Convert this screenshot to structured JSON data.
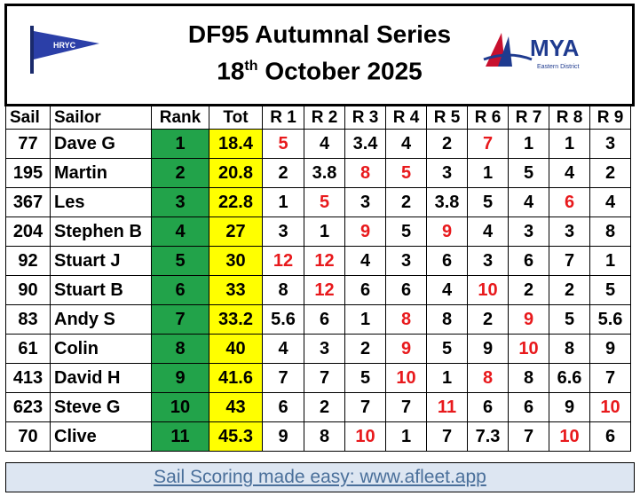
{
  "header": {
    "title": "DF95 Autumnal Series",
    "date_day": "18",
    "date_suffix": "th",
    "date_rest": "October 2025",
    "left_logo_text": "HRYC",
    "right_logo_text": "MYA",
    "right_logo_subtext": "Eastern District"
  },
  "table": {
    "columns": [
      "Sail",
      "Sailor",
      "Rank",
      "Tot",
      "R 1",
      "R 2",
      "R 3",
      "R 4",
      "R 5",
      "R 6",
      "R 7",
      "R 8",
      "R 9"
    ],
    "rank_color": "#22a34a",
    "tot_color": "#ffff00",
    "discard_color": "#e8191c",
    "rows": [
      {
        "sail": "77",
        "sailor": "Dave G",
        "rank": "1",
        "tot": "18.4",
        "races": [
          "5",
          "4",
          "3.4",
          "4",
          "2",
          "7",
          "1",
          "1",
          "3"
        ],
        "discards": [
          0,
          5
        ]
      },
      {
        "sail": "195",
        "sailor": "Martin",
        "rank": "2",
        "tot": "20.8",
        "races": [
          "2",
          "3.8",
          "8",
          "5",
          "3",
          "1",
          "5",
          "4",
          "2"
        ],
        "discards": [
          2,
          3
        ]
      },
      {
        "sail": "367",
        "sailor": "Les",
        "rank": "3",
        "tot": "22.8",
        "races": [
          "1",
          "5",
          "3",
          "2",
          "3.8",
          "5",
          "4",
          "6",
          "4"
        ],
        "discards": [
          1,
          7
        ]
      },
      {
        "sail": "204",
        "sailor": "Stephen B",
        "rank": "4",
        "tot": "27",
        "races": [
          "3",
          "1",
          "9",
          "5",
          "9",
          "4",
          "3",
          "3",
          "8"
        ],
        "discards": [
          2,
          4
        ]
      },
      {
        "sail": "92",
        "sailor": "Stuart J",
        "rank": "5",
        "tot": "30",
        "races": [
          "12",
          "12",
          "4",
          "3",
          "6",
          "3",
          "6",
          "7",
          "1"
        ],
        "discards": [
          0,
          1
        ]
      },
      {
        "sail": "90",
        "sailor": "Stuart B",
        "rank": "6",
        "tot": "33",
        "races": [
          "8",
          "12",
          "6",
          "6",
          "4",
          "10",
          "2",
          "2",
          "5"
        ],
        "discards": [
          1,
          5
        ]
      },
      {
        "sail": "83",
        "sailor": "Andy S",
        "rank": "7",
        "tot": "33.2",
        "races": [
          "5.6",
          "6",
          "1",
          "8",
          "8",
          "2",
          "9",
          "5",
          "5.6"
        ],
        "discards": [
          3,
          6
        ]
      },
      {
        "sail": "61",
        "sailor": "Colin",
        "rank": "8",
        "tot": "40",
        "races": [
          "4",
          "3",
          "2",
          "9",
          "5",
          "9",
          "10",
          "8",
          "9"
        ],
        "discards": [
          3,
          6
        ]
      },
      {
        "sail": "413",
        "sailor": "David H",
        "rank": "9",
        "tot": "41.6",
        "races": [
          "7",
          "7",
          "5",
          "10",
          "1",
          "8",
          "8",
          "6.6",
          "7"
        ],
        "discards": [
          3,
          5
        ]
      },
      {
        "sail": "623",
        "sailor": "Steve G",
        "rank": "10",
        "tot": "43",
        "races": [
          "6",
          "2",
          "7",
          "7",
          "11",
          "6",
          "6",
          "9",
          "10"
        ],
        "discards": [
          4,
          8
        ]
      },
      {
        "sail": "70",
        "sailor": "Clive",
        "rank": "11",
        "tot": "45.3",
        "races": [
          "9",
          "8",
          "10",
          "1",
          "7",
          "7.3",
          "7",
          "10",
          "6"
        ],
        "discards": [
          2,
          7
        ]
      }
    ]
  },
  "footer": {
    "text": "Sail Scoring made easy: www.afleet.app"
  }
}
